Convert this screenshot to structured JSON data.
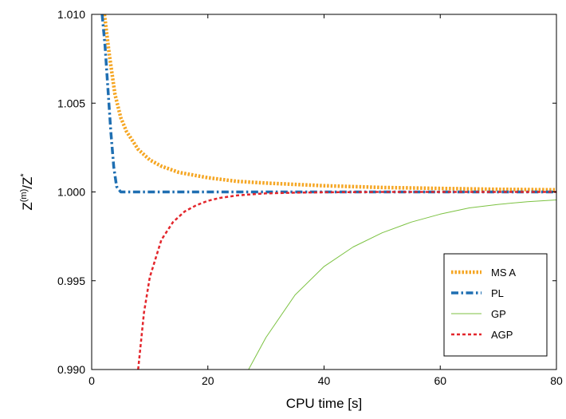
{
  "chart_data": {
    "type": "line",
    "xlabel": "CPU time [s]",
    "ylabel_main": "Z",
    "ylabel_sup1": "(m)",
    "ylabel_sep": "/Z",
    "ylabel_sup2": "*",
    "xlim": [
      0,
      80
    ],
    "ylim": [
      0.99,
      1.01
    ],
    "x_ticks": [
      0,
      20,
      40,
      60,
      80
    ],
    "x_tick_labels": [
      "0",
      "20",
      "40",
      "60",
      "80"
    ],
    "y_ticks": [
      0.99,
      0.995,
      1.0,
      1.005,
      1.01
    ],
    "y_tick_labels": [
      "0.990",
      "0.995",
      "1.000",
      "1.005",
      "1.010"
    ],
    "grid": false,
    "legend_position": "bottom-right",
    "series": [
      {
        "name": "MS A",
        "color": "#f5a623",
        "style": "dotted",
        "x": [
          2.2,
          3,
          4,
          5,
          6,
          8,
          10,
          12,
          15,
          20,
          25,
          30,
          40,
          50,
          60,
          70,
          80
        ],
        "y": [
          1.01,
          1.0078,
          1.0055,
          1.0042,
          1.0034,
          1.0024,
          1.0018,
          1.00145,
          1.0011,
          1.0008,
          1.0006,
          1.0005,
          1.00035,
          1.00025,
          1.0002,
          1.00015,
          1.00012
        ]
      },
      {
        "name": "PL",
        "color": "#1f6fb2",
        "style": "dashdot",
        "x": [
          1.8,
          2.3,
          2.8,
          3.3,
          3.8,
          4.3,
          5,
          6,
          10,
          20,
          40,
          60,
          80
        ],
        "y": [
          1.01,
          1.0082,
          1.0058,
          1.0034,
          1.0014,
          1.0003,
          1.0,
          1.0,
          1.0,
          1.0,
          1.0,
          1.0,
          1.0
        ]
      },
      {
        "name": "GP",
        "color": "#7cc242",
        "style": "solid",
        "x": [
          27,
          30,
          35,
          40,
          45,
          50,
          55,
          60,
          65,
          70,
          75,
          80
        ],
        "y": [
          0.99,
          0.9918,
          0.9942,
          0.9958,
          0.9969,
          0.9977,
          0.9983,
          0.99875,
          0.9991,
          0.9993,
          0.99945,
          0.99955
        ]
      },
      {
        "name": "AGP",
        "color": "#e3262c",
        "style": "dashed",
        "x": [
          8,
          9,
          10,
          12,
          14,
          16,
          18,
          20,
          22,
          25,
          28,
          30,
          35,
          40,
          50,
          60,
          80
        ],
        "y": [
          0.99,
          0.9932,
          0.9952,
          0.9973,
          0.9983,
          0.9989,
          0.99925,
          0.9995,
          0.99966,
          0.9998,
          0.99988,
          0.99992,
          0.99996,
          0.99998,
          1.0,
          1.0,
          1.0
        ]
      }
    ]
  }
}
